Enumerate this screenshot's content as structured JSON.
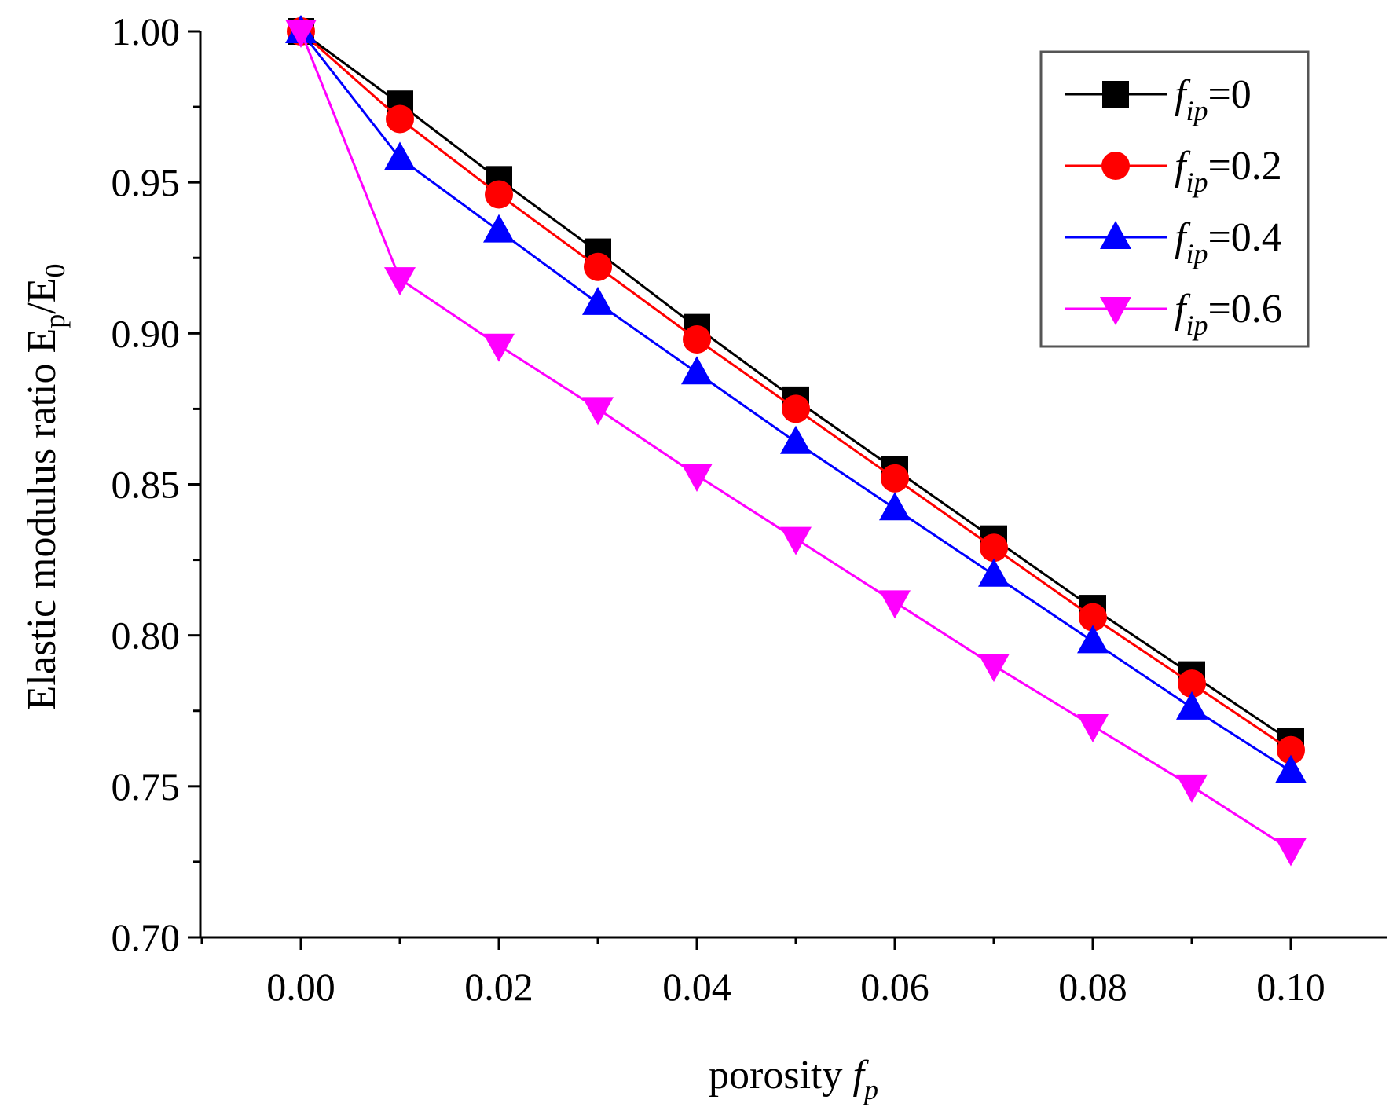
{
  "chart_data": {
    "type": "line",
    "title": "",
    "xlabel": {
      "main": "porosity ",
      "var": "f",
      "sub": "p"
    },
    "ylabel": {
      "main": "Elastic modulus ratio E",
      "sub1": "p",
      "mid": "/E",
      "sub2": "0"
    },
    "xlim": [
      -0.01,
      0.11
    ],
    "ylim": [
      0.7,
      1.0
    ],
    "x": [
      0.0,
      0.01,
      0.02,
      0.03,
      0.04,
      0.05,
      0.06,
      0.07,
      0.08,
      0.09,
      0.1
    ],
    "x_ticks": [
      "0.00",
      "0.02",
      "0.04",
      "0.06",
      "0.08",
      "0.10"
    ],
    "x_tick_values": [
      0.0,
      0.02,
      0.04,
      0.06,
      0.08,
      0.1
    ],
    "y_ticks": [
      "0.70",
      "0.75",
      "0.80",
      "0.85",
      "0.90",
      "0.95",
      "1.00"
    ],
    "y_tick_values": [
      0.7,
      0.75,
      0.8,
      0.85,
      0.9,
      0.95,
      1.0
    ],
    "legend_position": "top-right",
    "series": [
      {
        "name": "f_ip=0",
        "label_var": "f",
        "label_sub": "ip",
        "label_value": "=0",
        "color": "#000000",
        "marker": "square",
        "values": [
          1.0,
          0.976,
          0.951,
          0.927,
          0.902,
          0.878,
          0.855,
          0.832,
          0.809,
          0.787,
          0.765
        ]
      },
      {
        "name": "f_ip=0.2",
        "label_var": "f",
        "label_sub": "ip",
        "label_value": "=0.2",
        "color": "#ff0000",
        "marker": "circle",
        "values": [
          1.0,
          0.971,
          0.946,
          0.922,
          0.898,
          0.875,
          0.852,
          0.829,
          0.806,
          0.784,
          0.762
        ]
      },
      {
        "name": "f_ip=0.4",
        "label_var": "f",
        "label_sub": "ip",
        "label_value": "=0.4",
        "color": "#0000ff",
        "marker": "triangle-up",
        "values": [
          1.0,
          0.958,
          0.934,
          0.91,
          0.887,
          0.864,
          0.842,
          0.82,
          0.798,
          0.776,
          0.755
        ]
      },
      {
        "name": "f_ip=0.6",
        "label_var": "f",
        "label_sub": "ip",
        "label_value": "=0.6",
        "color": "#ff00ff",
        "marker": "triangle-down",
        "values": [
          1.0,
          0.918,
          0.896,
          0.875,
          0.853,
          0.832,
          0.811,
          0.79,
          0.77,
          0.75,
          0.729
        ]
      }
    ]
  }
}
